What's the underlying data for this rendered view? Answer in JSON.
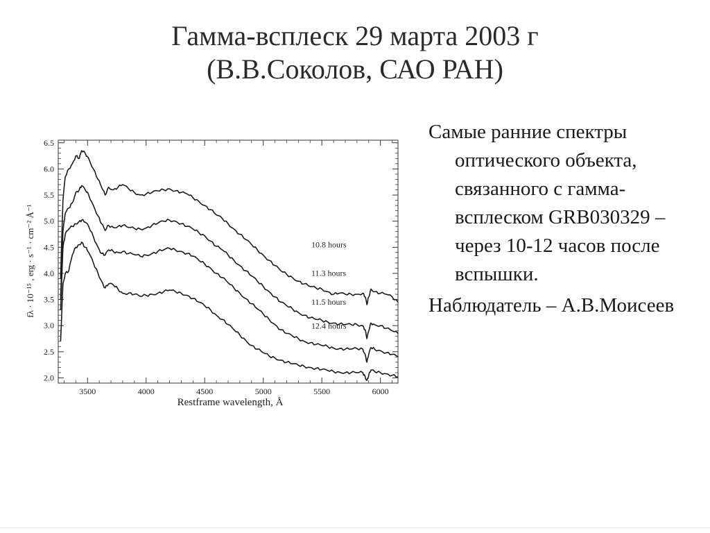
{
  "slide": {
    "title_line1": "Гамма-всплеск 29 марта 2003 г",
    "title_line2": "(В.В.Соколов, САО РАН)",
    "bullets": [
      "Самые ранние спектры оптического объекта, связанного с гамма-всплеском GRB030329 – через 10-12 часов после вспышки.",
      "Наблюдатель – А.В.Моисеев"
    ]
  },
  "chart_data": {
    "type": "line",
    "xlabel": "Restframe wavelength, Å",
    "ylabel": "fλ · 10⁻¹⁵ , erg · s⁻¹ · cm⁻² Å⁻¹",
    "xlim": [
      3250,
      6150
    ],
    "ylim": [
      1.9,
      6.55
    ],
    "xticks": [
      3500,
      4000,
      4500,
      5000,
      5500,
      6000
    ],
    "yticks": [
      2.0,
      2.5,
      3.0,
      3.5,
      4.0,
      4.5,
      5.0,
      5.5,
      6.0,
      6.5
    ],
    "grid": false,
    "series": [
      {
        "name": "10.8 hours",
        "label_pos": [
          5410,
          4.5
        ],
        "points": [
          [
            3270,
            3.9
          ],
          [
            3290,
            5.4
          ],
          [
            3310,
            5.85
          ],
          [
            3340,
            6.0
          ],
          [
            3370,
            6.1
          ],
          [
            3400,
            6.25
          ],
          [
            3430,
            6.2
          ],
          [
            3450,
            6.35
          ],
          [
            3480,
            6.3
          ],
          [
            3510,
            6.2
          ],
          [
            3550,
            6.0
          ],
          [
            3590,
            5.8
          ],
          [
            3620,
            5.65
          ],
          [
            3650,
            5.5
          ],
          [
            3680,
            5.65
          ],
          [
            3720,
            5.6
          ],
          [
            3760,
            5.65
          ],
          [
            3800,
            5.7
          ],
          [
            3850,
            5.62
          ],
          [
            3900,
            5.55
          ],
          [
            3950,
            5.5
          ],
          [
            4000,
            5.52
          ],
          [
            4050,
            5.55
          ],
          [
            4100,
            5.58
          ],
          [
            4150,
            5.6
          ],
          [
            4200,
            5.62
          ],
          [
            4250,
            5.58
          ],
          [
            4300,
            5.55
          ],
          [
            4350,
            5.52
          ],
          [
            4400,
            5.45
          ],
          [
            4450,
            5.38
          ],
          [
            4500,
            5.3
          ],
          [
            4550,
            5.22
          ],
          [
            4600,
            5.12
          ],
          [
            4650,
            5.05
          ],
          [
            4700,
            4.95
          ],
          [
            4750,
            4.85
          ],
          [
            4800,
            4.75
          ],
          [
            4850,
            4.65
          ],
          [
            4900,
            4.55
          ],
          [
            4950,
            4.45
          ],
          [
            5000,
            4.35
          ],
          [
            5050,
            4.25
          ],
          [
            5100,
            4.15
          ],
          [
            5150,
            4.05
          ],
          [
            5200,
            3.98
          ],
          [
            5250,
            3.92
          ],
          [
            5300,
            3.85
          ],
          [
            5350,
            3.8
          ],
          [
            5400,
            3.75
          ],
          [
            5450,
            3.72
          ],
          [
            5500,
            3.7
          ],
          [
            5550,
            3.65
          ],
          [
            5600,
            3.6
          ],
          [
            5650,
            3.62
          ],
          [
            5700,
            3.6
          ],
          [
            5750,
            3.6
          ],
          [
            5800,
            3.6
          ],
          [
            5850,
            3.62
          ],
          [
            5870,
            3.55
          ],
          [
            5885,
            3.4
          ],
          [
            5900,
            3.55
          ],
          [
            5920,
            3.7
          ],
          [
            5950,
            3.65
          ],
          [
            6000,
            3.62
          ],
          [
            6050,
            3.6
          ],
          [
            6100,
            3.55
          ],
          [
            6150,
            3.45
          ]
        ]
      },
      {
        "name": "11.3 hours",
        "label_pos": [
          5410,
          3.95
        ],
        "points": [
          [
            3270,
            3.5
          ],
          [
            3290,
            4.8
          ],
          [
            3310,
            5.15
          ],
          [
            3340,
            5.25
          ],
          [
            3370,
            5.35
          ],
          [
            3400,
            5.55
          ],
          [
            3430,
            5.6
          ],
          [
            3450,
            5.68
          ],
          [
            3480,
            5.6
          ],
          [
            3510,
            5.5
          ],
          [
            3550,
            5.3
          ],
          [
            3590,
            5.1
          ],
          [
            3620,
            4.95
          ],
          [
            3650,
            4.82
          ],
          [
            3680,
            4.92
          ],
          [
            3720,
            4.88
          ],
          [
            3760,
            4.9
          ],
          [
            3800,
            4.92
          ],
          [
            3850,
            4.88
          ],
          [
            3900,
            4.86
          ],
          [
            3950,
            4.85
          ],
          [
            4000,
            4.87
          ],
          [
            4050,
            4.92
          ],
          [
            4100,
            4.96
          ],
          [
            4150,
            5.0
          ],
          [
            4200,
            5.02
          ],
          [
            4250,
            5.0
          ],
          [
            4300,
            4.95
          ],
          [
            4350,
            4.9
          ],
          [
            4400,
            4.85
          ],
          [
            4450,
            4.78
          ],
          [
            4500,
            4.72
          ],
          [
            4550,
            4.62
          ],
          [
            4600,
            4.52
          ],
          [
            4650,
            4.45
          ],
          [
            4700,
            4.35
          ],
          [
            4750,
            4.25
          ],
          [
            4800,
            4.15
          ],
          [
            4850,
            4.05
          ],
          [
            4900,
            3.95
          ],
          [
            4950,
            3.85
          ],
          [
            5000,
            3.75
          ],
          [
            5050,
            3.65
          ],
          [
            5100,
            3.55
          ],
          [
            5150,
            3.45
          ],
          [
            5200,
            3.38
          ],
          [
            5250,
            3.32
          ],
          [
            5300,
            3.25
          ],
          [
            5350,
            3.2
          ],
          [
            5400,
            3.15
          ],
          [
            5450,
            3.12
          ],
          [
            5500,
            3.1
          ],
          [
            5550,
            3.07
          ],
          [
            5600,
            3.05
          ],
          [
            5650,
            3.03
          ],
          [
            5700,
            3.02
          ],
          [
            5750,
            3.02
          ],
          [
            5800,
            3.02
          ],
          [
            5850,
            3.0
          ],
          [
            5870,
            2.92
          ],
          [
            5885,
            2.75
          ],
          [
            5900,
            2.9
          ],
          [
            5920,
            3.05
          ],
          [
            5950,
            3.02
          ],
          [
            6000,
            3.0
          ],
          [
            6050,
            2.95
          ],
          [
            6100,
            2.9
          ],
          [
            6150,
            2.85
          ]
        ]
      },
      {
        "name": "11.5 hours",
        "label_pos": [
          5410,
          3.4
        ],
        "points": [
          [
            3270,
            3.3
          ],
          [
            3290,
            4.5
          ],
          [
            3310,
            4.75
          ],
          [
            3340,
            4.85
          ],
          [
            3370,
            4.9
          ],
          [
            3400,
            4.95
          ],
          [
            3430,
            5.0
          ],
          [
            3450,
            5.02
          ],
          [
            3480,
            4.98
          ],
          [
            3510,
            4.9
          ],
          [
            3550,
            4.7
          ],
          [
            3590,
            4.5
          ],
          [
            3620,
            4.38
          ],
          [
            3650,
            4.35
          ],
          [
            3680,
            4.45
          ],
          [
            3720,
            4.42
          ],
          [
            3760,
            4.4
          ],
          [
            3800,
            4.42
          ],
          [
            3850,
            4.38
          ],
          [
            3900,
            4.36
          ],
          [
            3950,
            4.33
          ],
          [
            4000,
            4.35
          ],
          [
            4050,
            4.38
          ],
          [
            4100,
            4.42
          ],
          [
            4150,
            4.45
          ],
          [
            4200,
            4.48
          ],
          [
            4250,
            4.45
          ],
          [
            4300,
            4.42
          ],
          [
            4350,
            4.38
          ],
          [
            4400,
            4.33
          ],
          [
            4450,
            4.25
          ],
          [
            4500,
            4.18
          ],
          [
            4550,
            4.1
          ],
          [
            4600,
            4.0
          ],
          [
            4650,
            3.92
          ],
          [
            4700,
            3.82
          ],
          [
            4750,
            3.72
          ],
          [
            4800,
            3.62
          ],
          [
            4850,
            3.52
          ],
          [
            4900,
            3.42
          ],
          [
            4950,
            3.32
          ],
          [
            5000,
            3.22
          ],
          [
            5050,
            3.12
          ],
          [
            5100,
            3.02
          ],
          [
            5150,
            2.92
          ],
          [
            5200,
            2.85
          ],
          [
            5250,
            2.8
          ],
          [
            5300,
            2.75
          ],
          [
            5350,
            2.7
          ],
          [
            5400,
            2.67
          ],
          [
            5450,
            2.64
          ],
          [
            5500,
            2.62
          ],
          [
            5550,
            2.6
          ],
          [
            5600,
            2.57
          ],
          [
            5650,
            2.56
          ],
          [
            5700,
            2.55
          ],
          [
            5750,
            2.55
          ],
          [
            5800,
            2.56
          ],
          [
            5850,
            2.55
          ],
          [
            5870,
            2.45
          ],
          [
            5885,
            2.3
          ],
          [
            5900,
            2.45
          ],
          [
            5920,
            2.58
          ],
          [
            5950,
            2.55
          ],
          [
            6000,
            2.52
          ],
          [
            6050,
            2.48
          ],
          [
            6100,
            2.45
          ],
          [
            6150,
            2.4
          ]
        ]
      },
      {
        "name": "12.4 hours",
        "label_pos": [
          5410,
          2.94
        ],
        "points": [
          [
            3270,
            2.7
          ],
          [
            3290,
            3.8
          ],
          [
            3310,
            4.0
          ],
          [
            3340,
            4.05
          ],
          [
            3370,
            4.35
          ],
          [
            3400,
            4.5
          ],
          [
            3430,
            4.55
          ],
          [
            3450,
            4.6
          ],
          [
            3480,
            4.5
          ],
          [
            3510,
            4.4
          ],
          [
            3550,
            4.2
          ],
          [
            3590,
            4.0
          ],
          [
            3620,
            3.85
          ],
          [
            3650,
            3.72
          ],
          [
            3680,
            3.8
          ],
          [
            3720,
            3.78
          ],
          [
            3760,
            3.7
          ],
          [
            3800,
            3.62
          ],
          [
            3850,
            3.62
          ],
          [
            3900,
            3.6
          ],
          [
            3950,
            3.56
          ],
          [
            4000,
            3.58
          ],
          [
            4050,
            3.6
          ],
          [
            4100,
            3.62
          ],
          [
            4150,
            3.65
          ],
          [
            4200,
            3.68
          ],
          [
            4250,
            3.65
          ],
          [
            4300,
            3.62
          ],
          [
            4350,
            3.58
          ],
          [
            4400,
            3.52
          ],
          [
            4450,
            3.45
          ],
          [
            4500,
            3.38
          ],
          [
            4550,
            3.3
          ],
          [
            4600,
            3.2
          ],
          [
            4650,
            3.12
          ],
          [
            4700,
            3.02
          ],
          [
            4750,
            2.92
          ],
          [
            4800,
            2.82
          ],
          [
            4850,
            2.72
          ],
          [
            4900,
            2.62
          ],
          [
            4950,
            2.55
          ],
          [
            5000,
            2.48
          ],
          [
            5050,
            2.42
          ],
          [
            5100,
            2.38
          ],
          [
            5150,
            2.34
          ],
          [
            5200,
            2.3
          ],
          [
            5250,
            2.27
          ],
          [
            5300,
            2.24
          ],
          [
            5350,
            2.22
          ],
          [
            5400,
            2.2
          ],
          [
            5450,
            2.18
          ],
          [
            5500,
            2.16
          ],
          [
            5550,
            2.14
          ],
          [
            5600,
            2.12
          ],
          [
            5650,
            2.11
          ],
          [
            5700,
            2.1
          ],
          [
            5750,
            2.1
          ],
          [
            5800,
            2.1
          ],
          [
            5850,
            2.1
          ],
          [
            5870,
            2.02
          ],
          [
            5885,
            1.95
          ],
          [
            5900,
            2.05
          ],
          [
            5920,
            2.15
          ],
          [
            5950,
            2.12
          ],
          [
            6000,
            2.1
          ],
          [
            6050,
            2.08
          ],
          [
            6100,
            2.05
          ],
          [
            6150,
            2.02
          ]
        ]
      }
    ]
  }
}
